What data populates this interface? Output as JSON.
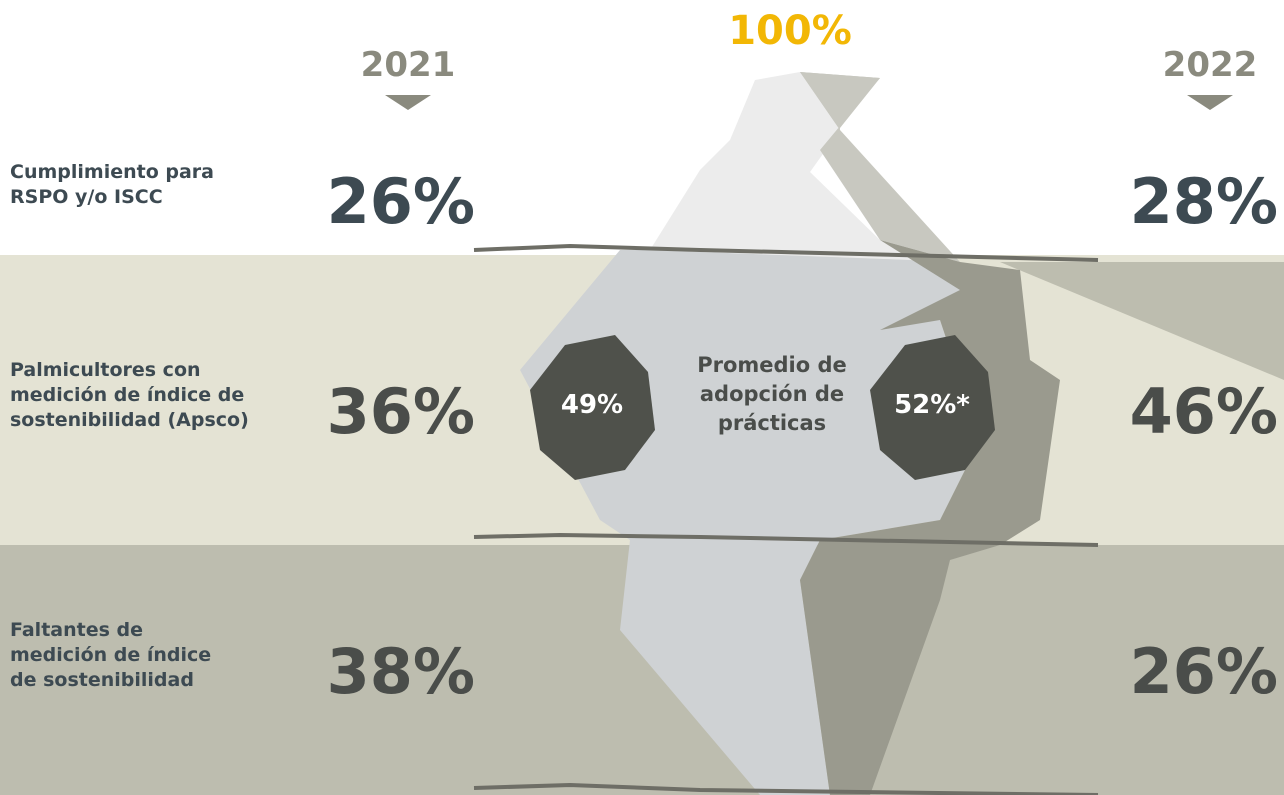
{
  "header": {
    "total": "100%",
    "year_left": "2021",
    "year_right": "2022"
  },
  "rows": [
    {
      "label": [
        "Cumplimiento para",
        "RSPO y/o ISCC"
      ],
      "left": "26%",
      "right": "28%"
    },
    {
      "label": [
        "Palmicultores con",
        "medición de índice de",
        "sostenibilidad (Apsco)"
      ],
      "left": "36%",
      "right": "46%"
    },
    {
      "label": [
        "Faltantes de",
        "medición de índice",
        "de sostenibilidad"
      ],
      "left": "38%",
      "right": "26%"
    }
  ],
  "center": {
    "left": "49%",
    "label": [
      "Promedio de",
      "adopción de",
      "prácticas"
    ],
    "right": "52%*"
  }
}
